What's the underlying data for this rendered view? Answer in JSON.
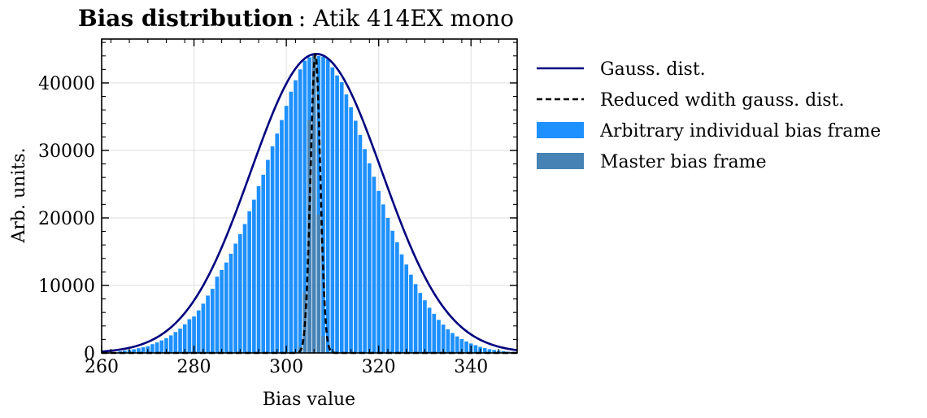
{
  "chart_data": {
    "type": "bar",
    "title_bold": "Bias distribution",
    "title_rest": ": Atik 414EX mono",
    "xlabel": "Bias value",
    "ylabel": "Arb. units.",
    "xlim": [
      260,
      350
    ],
    "ylim": [
      0,
      46500
    ],
    "x_ticks": [
      260,
      280,
      300,
      320,
      340
    ],
    "y_ticks": [
      0,
      10000,
      20000,
      30000,
      40000
    ],
    "grid": true,
    "legend_position": "outside-right",
    "colors": {
      "gauss": "#000080",
      "individual": "#1e90ff",
      "master": "#4682b4",
      "reduced": "#000000"
    },
    "legend": [
      {
        "key": "gauss",
        "label": "Gauss. dist.",
        "kind": "line"
      },
      {
        "key": "reduced",
        "label": "Reduced wdith gauss. dist.",
        "kind": "dashed"
      },
      {
        "key": "individual",
        "label": "Arbitrary individual bias frame",
        "kind": "patch"
      },
      {
        "key": "master",
        "label": "Master bias frame",
        "kind": "patch"
      }
    ],
    "individual_bars": {
      "x": [
        264,
        265,
        266,
        267,
        268,
        269,
        270,
        271,
        272,
        273,
        274,
        275,
        276,
        277,
        278,
        279,
        280,
        281,
        282,
        283,
        284,
        285,
        286,
        287,
        288,
        289,
        290,
        291,
        292,
        293,
        294,
        295,
        296,
        297,
        298,
        299,
        300,
        301,
        302,
        303,
        304,
        305,
        306,
        307,
        308,
        309,
        310,
        311,
        312,
        313,
        314,
        315,
        316,
        317,
        318,
        319,
        320,
        321,
        322,
        323,
        324,
        325,
        326,
        327,
        328,
        329,
        330,
        331,
        332,
        333,
        334,
        335,
        336,
        337,
        338,
        339,
        340,
        341,
        342,
        343,
        344,
        345,
        346,
        347,
        348,
        349
      ],
      "values": [
        250,
        350,
        450,
        550,
        700,
        850,
        1000,
        1300,
        1550,
        1850,
        2200,
        2600,
        3100,
        3600,
        4250,
        5000,
        5400,
        6300,
        7300,
        8500,
        9500,
        11300,
        12300,
        13400,
        14700,
        16200,
        17600,
        19100,
        21000,
        22700,
        24700,
        26400,
        28600,
        30600,
        32500,
        34500,
        36600,
        38700,
        40400,
        42000,
        43300,
        43800,
        44200,
        44000,
        43900,
        43500,
        42300,
        41100,
        40100,
        38300,
        36400,
        34400,
        32300,
        30200,
        28100,
        26100,
        24000,
        22000,
        20000,
        18100,
        16400,
        14600,
        13100,
        11600,
        10200,
        8900,
        7800,
        6700,
        5800,
        4900,
        4200,
        3500,
        2950,
        2450,
        2050,
        1700,
        1400,
        1150,
        900,
        720,
        560,
        440,
        340,
        260,
        190,
        140
      ]
    },
    "master_bars": {
      "x": [
        302,
        303,
        304,
        305,
        306,
        307,
        308,
        309
      ],
      "values": [
        80,
        900,
        9000,
        34500,
        44200,
        20500,
        2500,
        120
      ]
    },
    "gauss_fit": {
      "mean": 306.5,
      "sigma": 14.2,
      "amplitude": 44300
    },
    "reduced_fit": {
      "mean": 306.3,
      "sigma": 1.05,
      "amplitude": 44200
    }
  }
}
